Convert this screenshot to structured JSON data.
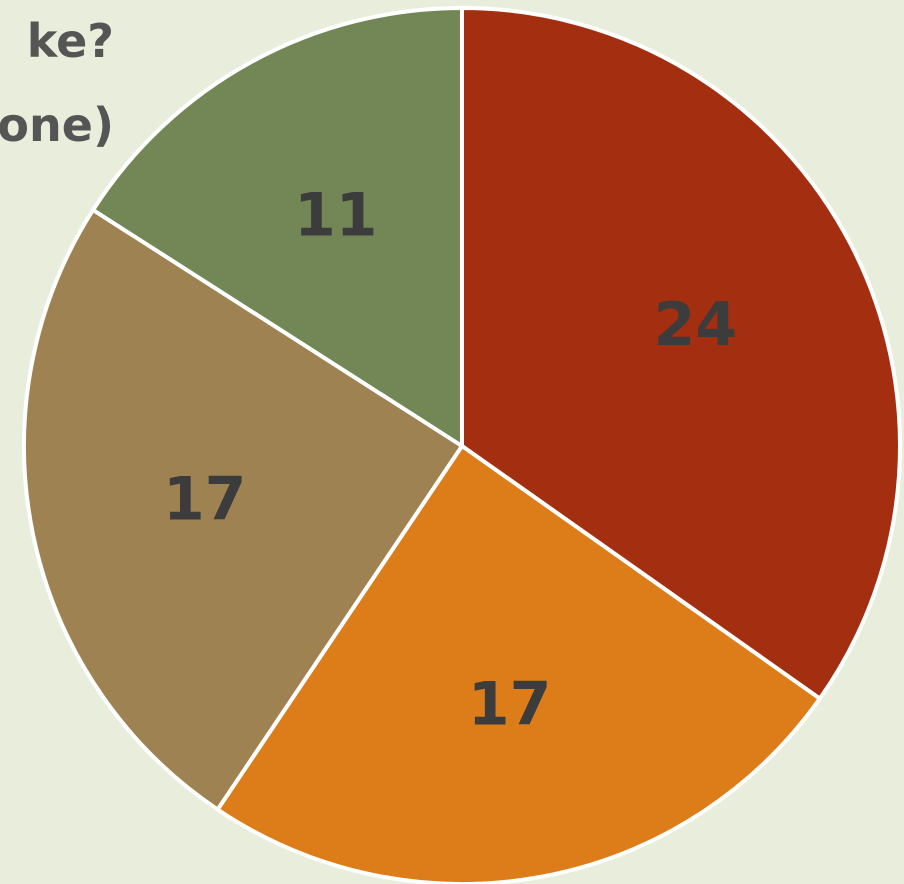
{
  "chart_data": {
    "type": "pie",
    "title_fragments": [
      "ke?",
      "one)"
    ],
    "slices": [
      {
        "value": 24,
        "label": "24",
        "color": "#a42f10"
      },
      {
        "value": 17,
        "label": "17",
        "color": "#dd7d19"
      },
      {
        "value": 17,
        "label": "17",
        "color": "#9e8251"
      },
      {
        "value": 11,
        "label": "11",
        "color": "#728755"
      }
    ],
    "start_angle_deg": 0,
    "direction": "clockwise",
    "slice_border_color": "#ffffff",
    "label_color": "#3c3c3c",
    "background_color": "#e9eedc"
  }
}
